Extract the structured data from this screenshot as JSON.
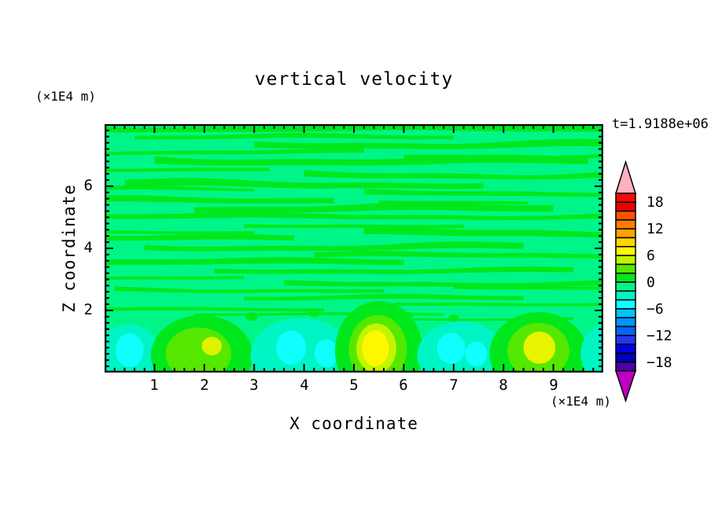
{
  "figure": {
    "title": "vertical velocity",
    "time_label": "t=1.9188e+06",
    "z_axis_unit": "(×1E4 m)",
    "x_axis_unit": "(×1E4 m)",
    "x_axis_title": "X coordinate",
    "z_axis_title": "Z coordinate"
  },
  "chart_data": {
    "type": "heatmap",
    "subtype": "filled-contour",
    "title": "vertical velocity",
    "annotation": "t=1.9188e+06",
    "xlabel": "X coordinate",
    "xunit": "(×1E4 m)",
    "ylabel": "Z coordinate",
    "yunit": "(×1E4 m)",
    "xlim": [
      0,
      10
    ],
    "ylim": [
      0,
      8
    ],
    "x_major_tick_labels": [
      "1",
      "2",
      "3",
      "4",
      "5",
      "6",
      "7",
      "8",
      "9"
    ],
    "x_major_tick_values": [
      1,
      2,
      3,
      4,
      5,
      6,
      7,
      8,
      9
    ],
    "y_major_tick_labels": [
      "2",
      "4",
      "6"
    ],
    "y_major_tick_values": [
      2,
      4,
      6
    ],
    "minor_tick_step": 0.2,
    "grid": false,
    "legend_position": "right",
    "colorbar": {
      "min": -20,
      "max": 20,
      "step": 2,
      "label_values": [
        18,
        12,
        6,
        0,
        -6,
        -12,
        -18
      ],
      "labels": [
        "18",
        "12",
        "6",
        "0",
        "−6",
        "−12",
        "−18"
      ],
      "over_arrow_color": "#FFB0BE",
      "under_arrow_color": "#BC00C4",
      "colors_top_to_bottom": [
        "#F90909",
        "#EC0000",
        "#FF5200",
        "#FF7D00",
        "#FFA301",
        "#FFD400",
        "#FDF800",
        "#C3F400",
        "#55E800",
        "#00E81C",
        "#00F589",
        "#00F5C4",
        "#0FFFFF",
        "#00C4FF",
        "#0095FF",
        "#0066FF",
        "#2238F0",
        "#0000E6",
        "#0000BA",
        "#4B00A8"
      ]
    },
    "field_description": {
      "background_color": "#00F589",
      "background_level_range": [
        -2,
        0
      ],
      "streak_color": "#00E81C",
      "streak_level_range": [
        0,
        2
      ],
      "streaks": [
        [
          0.018,
          0.0,
          1.0,
          7,
          2,
          0.5
        ],
        [
          0.052,
          0.06,
          0.7,
          5,
          2,
          2.1
        ],
        [
          0.082,
          0.3,
          1.0,
          8,
          3,
          4.0
        ],
        [
          0.112,
          0.0,
          0.52,
          5,
          2,
          1.2
        ],
        [
          0.128,
          0.6,
          1.0,
          5,
          2,
          2.6
        ],
        [
          0.148,
          0.1,
          0.97,
          9,
          3,
          5.3
        ],
        [
          0.18,
          0.0,
          0.33,
          5,
          2,
          0.8
        ],
        [
          0.205,
          0.4,
          1.0,
          7,
          3,
          2.7
        ],
        [
          0.242,
          0.04,
          0.76,
          8,
          3,
          3.9
        ],
        [
          0.262,
          0.0,
          0.3,
          4,
          2,
          4.6
        ],
        [
          0.278,
          0.52,
          1.0,
          6,
          2,
          1.5
        ],
        [
          0.305,
          0.0,
          0.46,
          7,
          2,
          5.0
        ],
        [
          0.315,
          0.55,
          0.85,
          4,
          1,
          1.9
        ],
        [
          0.34,
          0.18,
          0.9,
          8,
          3,
          0.3
        ],
        [
          0.372,
          0.0,
          1.0,
          6,
          2,
          2.9
        ],
        [
          0.408,
          0.28,
          0.72,
          5,
          2,
          4.4
        ],
        [
          0.435,
          0.0,
          0.3,
          4,
          1,
          5.9
        ],
        [
          0.438,
          0.52,
          1.0,
          8,
          3,
          1.0
        ],
        [
          0.46,
          0.0,
          0.38,
          6,
          2,
          3.3
        ],
        [
          0.495,
          0.08,
          0.84,
          7,
          3,
          5.8
        ],
        [
          0.528,
          0.42,
          1.0,
          6,
          2,
          0.9
        ],
        [
          0.555,
          0.0,
          0.6,
          7,
          2,
          2.4
        ],
        [
          0.59,
          0.22,
          0.94,
          6,
          2,
          4.8
        ],
        [
          0.618,
          0.0,
          0.28,
          4,
          1,
          1.7
        ],
        [
          0.642,
          0.36,
          1.0,
          6,
          2,
          3.1
        ],
        [
          0.66,
          0.7,
          1.0,
          4,
          1,
          0.2
        ],
        [
          0.668,
          0.02,
          0.56,
          5,
          2,
          5.5
        ],
        [
          0.7,
          0.28,
          0.84,
          5,
          2,
          0.6
        ],
        [
          0.724,
          0.58,
          1.0,
          4,
          1,
          2.2
        ],
        [
          0.746,
          0.0,
          0.44,
          4,
          1,
          4.1
        ],
        [
          0.766,
          0.18,
          0.68,
          3,
          1,
          1.4
        ],
        [
          0.785,
          0.48,
          0.94,
          3,
          1,
          3.6
        ]
      ],
      "blobs": [
        {
          "x": 0.48,
          "z": 0.5,
          "rx": 0.66,
          "rz": 1.05,
          "c": "#00F5C4"
        },
        {
          "x": 0.5,
          "z": 0.72,
          "rx": 0.28,
          "rz": 0.55,
          "c": "#0FFFFF"
        },
        {
          "x": 1.95,
          "z": 0.55,
          "rx": 1.02,
          "rz": 1.3,
          "c": "#00E81C"
        },
        {
          "x": 1.88,
          "z": 0.6,
          "rx": 0.66,
          "rz": 0.85,
          "c": "#55E800"
        },
        {
          "x": 2.15,
          "z": 0.85,
          "rx": 0.2,
          "rz": 0.3,
          "c": "#E0F200"
        },
        {
          "x": 3.95,
          "z": 0.55,
          "rx": 1.02,
          "rz": 1.2,
          "c": "#00F5C4"
        },
        {
          "x": 3.74,
          "z": 0.8,
          "rx": 0.3,
          "rz": 0.55,
          "c": "#0FFFFF"
        },
        {
          "x": 4.45,
          "z": 0.62,
          "rx": 0.24,
          "rz": 0.45,
          "c": "#0FFFFF"
        },
        {
          "x": 5.5,
          "z": 0.7,
          "rx": 0.88,
          "rz": 1.6,
          "c": "#00E81C"
        },
        {
          "x": 5.48,
          "z": 0.75,
          "rx": 0.58,
          "rz": 1.1,
          "c": "#55E800"
        },
        {
          "x": 5.45,
          "z": 0.78,
          "rx": 0.4,
          "rz": 0.8,
          "c": "#C3F400"
        },
        {
          "x": 5.43,
          "z": 0.78,
          "rx": 0.27,
          "rz": 0.58,
          "c": "#FDF800"
        },
        {
          "x": 7.15,
          "z": 0.55,
          "rx": 0.88,
          "rz": 1.1,
          "c": "#00F5C4"
        },
        {
          "x": 6.95,
          "z": 0.78,
          "rx": 0.28,
          "rz": 0.5,
          "c": "#0FFFFF"
        },
        {
          "x": 7.45,
          "z": 0.6,
          "rx": 0.22,
          "rz": 0.4,
          "c": "#0FFFFF"
        },
        {
          "x": 8.7,
          "z": 0.6,
          "rx": 0.98,
          "rz": 1.35,
          "c": "#00E81C"
        },
        {
          "x": 8.7,
          "z": 0.7,
          "rx": 0.62,
          "rz": 0.9,
          "c": "#55E800"
        },
        {
          "x": 8.72,
          "z": 0.8,
          "rx": 0.32,
          "rz": 0.52,
          "c": "#E8F400"
        },
        {
          "x": 10.05,
          "z": 0.6,
          "rx": 0.5,
          "rz": 0.95,
          "c": "#00F5C4"
        },
        {
          "x": 10.1,
          "z": 0.7,
          "rx": 0.15,
          "rz": 0.35,
          "c": "#0FFFFF"
        },
        {
          "x": 2.95,
          "z": 1.8,
          "rx": 0.12,
          "rz": 0.14,
          "c": "#00E81C"
        },
        {
          "x": 4.2,
          "z": 1.9,
          "rx": 0.1,
          "rz": 0.12,
          "c": "#00E81C"
        },
        {
          "x": 6.1,
          "z": 1.85,
          "rx": 0.09,
          "rz": 0.1,
          "c": "#00E81C"
        },
        {
          "x": 7.0,
          "z": 1.75,
          "rx": 0.1,
          "rz": 0.12,
          "c": "#00E81C"
        }
      ]
    }
  }
}
